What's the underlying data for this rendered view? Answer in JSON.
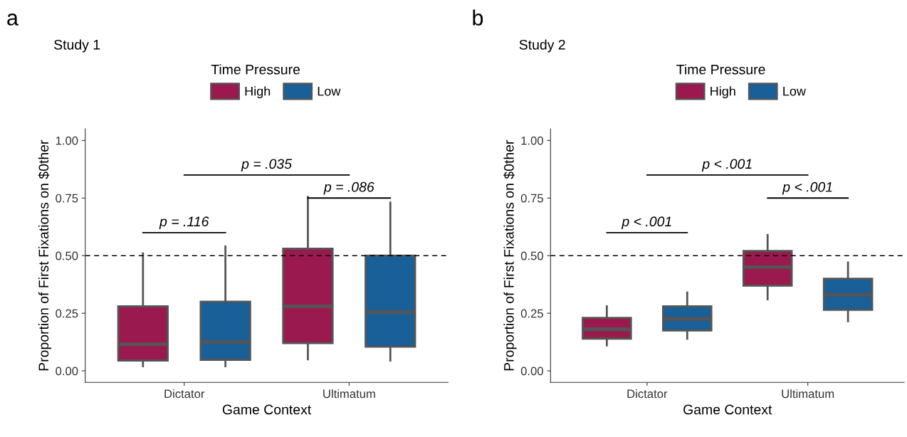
{
  "chart_data": [
    {
      "type": "box",
      "title": "Study 1",
      "xlabel": "Game Context",
      "ylabel": "Proportion of First Fixations on $0ther",
      "legend_title": "Time Pressure",
      "legend": "top",
      "grid": false,
      "categories": [
        "Dictator",
        "Ultimatum"
      ],
      "series": [
        {
          "name": "High",
          "color": "#9a1a50",
          "boxes": [
            {
              "low": 0.02,
              "q1": 0.045,
              "median": 0.115,
              "q3": 0.28,
              "high": 0.51
            },
            {
              "low": 0.05,
              "q1": 0.12,
              "median": 0.28,
              "q3": 0.53,
              "high": 0.755
            }
          ]
        },
        {
          "name": "Low",
          "color": "#1a6098",
          "boxes": [
            {
              "low": 0.02,
              "q1": 0.048,
              "median": 0.125,
              "q3": 0.3,
              "high": 0.54
            },
            {
              "low": 0.045,
              "q1": 0.105,
              "median": 0.255,
              "q3": 0.5,
              "high": 0.73
            }
          ]
        }
      ],
      "ylim": [
        -0.05,
        1.05
      ],
      "yticks": [
        {
          "value": 0,
          "label": "0.00"
        },
        {
          "value": 0.25,
          "label": "0.25"
        },
        {
          "value": 0.5,
          "label": "0.50"
        },
        {
          "value": 0.75,
          "label": "0.75"
        },
        {
          "value": 1,
          "label": "1.00"
        }
      ],
      "ref_lines": [
        {
          "axis": "y",
          "value": 0.5,
          "line_style": "dashed",
          "color": "#000000"
        }
      ],
      "annotations": [
        "a",
        "p = .116",
        "p = .035",
        "p = .086"
      ]
    },
    {
      "type": "box",
      "title": "Study 2",
      "xlabel": "Game Context",
      "ylabel": "Proportion of First Fixations on $0ther",
      "legend_title": "Time Pressure",
      "legend": "top",
      "grid": false,
      "categories": [
        "Dictator",
        "Ultimatum"
      ],
      "series": [
        {
          "name": "High",
          "color": "#9a1a50",
          "boxes": [
            {
              "low": 0.11,
              "q1": 0.14,
              "median": 0.18,
              "q3": 0.23,
              "high": 0.28
            },
            {
              "low": 0.31,
              "q1": 0.37,
              "median": 0.45,
              "q3": 0.52,
              "high": 0.59
            }
          ]
        },
        {
          "name": "Low",
          "color": "#1a6098",
          "boxes": [
            {
              "low": 0.14,
              "q1": 0.175,
              "median": 0.225,
              "q3": 0.28,
              "high": 0.34
            },
            {
              "low": 0.215,
              "q1": 0.265,
              "median": 0.33,
              "q3": 0.4,
              "high": 0.47
            }
          ]
        }
      ],
      "ylim": [
        -0.05,
        1.05
      ],
      "yticks": [
        {
          "value": 0,
          "label": "0.00"
        },
        {
          "value": 0.25,
          "label": "0.25"
        },
        {
          "value": 0.5,
          "label": "0.50"
        },
        {
          "value": 0.75,
          "label": "0.75"
        },
        {
          "value": 1,
          "label": "1.00"
        }
      ],
      "ref_lines": [
        {
          "axis": "y",
          "value": 0.5,
          "line_style": "dashed",
          "color": "#000000"
        }
      ],
      "annotations": [
        "b",
        "p < .001",
        "p < .001",
        "p < .001"
      ]
    }
  ]
}
